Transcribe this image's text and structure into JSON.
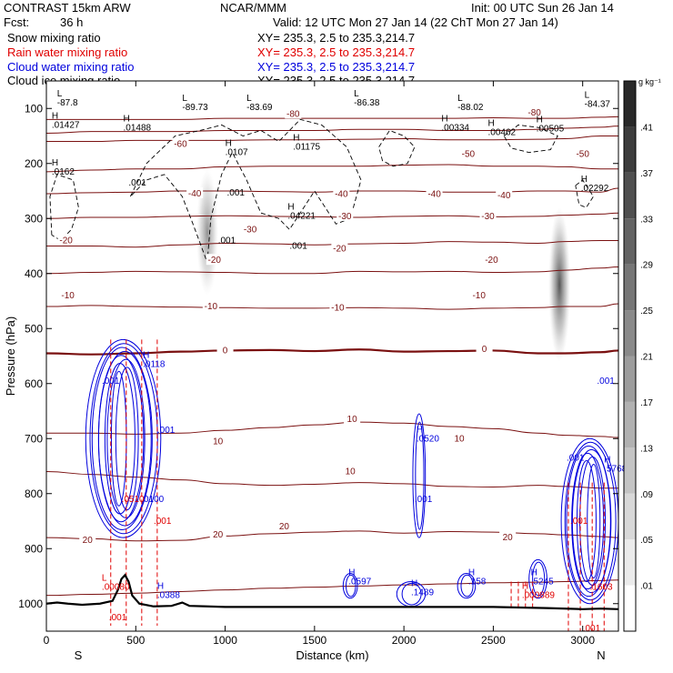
{
  "header": {
    "model": "CONTRAST 15km ARW",
    "center": "NCAR/MMM",
    "init": "Init: 00 UTC Sun 26 Jan 14",
    "fcst_label": "Fcst:",
    "fcst_value": "36 h",
    "valid": "Valid: 12 UTC Mon 27 Jan 14 (22 ChT Mon 27 Jan 14)"
  },
  "fields": [
    {
      "name": "Snow mixing ratio",
      "xy": "XY= 235.3,   2.5 to 235.3,214.7",
      "color": "#000000"
    },
    {
      "name": "Rain water mixing ratio",
      "xy": "XY= 235.3,   2.5 to 235.3,214.7",
      "color": "#e00000"
    },
    {
      "name": "Cloud water mixing ratio",
      "xy": "XY= 235.3,   2.5 to 235.3,214.7",
      "color": "#0000dd"
    },
    {
      "name": "Cloud ice mixing ratio",
      "xy": "XY= 235.3,   2.5 to 235.3,214.7",
      "color": "#000000"
    }
  ],
  "colors": {
    "temperature": "#7a1010",
    "rain": "#e00000",
    "cloud_water": "#0000dd",
    "snow": "#000000",
    "terrain": "#000000"
  },
  "chart_data": {
    "type": "cross-section",
    "xlabel": "Distance (km)",
    "ylabel": "Pressure (hPa)",
    "xlim": [
      0,
      3200
    ],
    "ylim": [
      1050,
      50
    ],
    "x_ticks": [
      0,
      500,
      1000,
      1500,
      2000,
      2500,
      3000
    ],
    "y_ticks": [
      100,
      200,
      300,
      400,
      500,
      600,
      700,
      800,
      900,
      1000
    ],
    "end_labels": {
      "left": "S",
      "right": "N"
    },
    "colorbar": {
      "unit": "g kg⁻¹",
      "ticks": [
        ".01",
        ".05",
        ".09",
        ".13",
        ".17",
        ".21",
        ".25",
        ".29",
        ".33",
        ".37",
        ".41"
      ]
    },
    "isotherms": [
      {
        "level": 20,
        "p": [
          985,
          983,
          981,
          978,
          975,
          972,
          970,
          968,
          966,
          964,
          962,
          961,
          960,
          958,
          957
        ]
      },
      {
        "level": 20,
        "p": [
          880,
          882,
          886,
          885,
          877,
          873,
          870,
          868,
          872,
          869,
          870,
          873,
          875,
          878,
          880
        ]
      },
      {
        "level": 10,
        "p": [
          760,
          765,
          770,
          775,
          782,
          785,
          783,
          780,
          782,
          787,
          788,
          785,
          787,
          790,
          790
        ]
      },
      {
        "level": 10,
        "p": [
          690,
          690,
          692,
          690,
          685,
          680,
          675,
          670,
          672,
          678,
          682,
          690,
          694,
          696,
          698
        ]
      },
      {
        "level": 0,
        "p": [
          545,
          547,
          545,
          542,
          540,
          539,
          541,
          538,
          542,
          541,
          540,
          545,
          545,
          543,
          540
        ]
      },
      {
        "level": -10,
        "p": [
          460,
          458,
          460,
          461,
          462,
          463,
          463,
          462,
          463,
          465,
          463,
          462,
          460,
          460,
          455
        ]
      },
      {
        "level": -10,
        "p": [
          400,
          398,
          396,
          397,
          398,
          400,
          400,
          396,
          397,
          396,
          398,
          397,
          394,
          390,
          388
        ]
      },
      {
        "level": -20,
        "p": [
          350,
          350,
          352,
          348,
          345,
          346,
          348,
          346,
          345,
          342,
          343,
          345,
          342,
          340,
          340
        ]
      },
      {
        "level": -30,
        "p": [
          300,
          298,
          298,
          296,
          295,
          296,
          297,
          298,
          296,
          295,
          297,
          296,
          294,
          292,
          290
        ]
      },
      {
        "level": -40,
        "p": [
          255,
          253,
          252,
          250,
          250,
          251,
          252,
          250,
          250,
          252,
          252,
          250,
          250,
          252,
          245
        ]
      },
      {
        "level": -50,
        "p": [
          215,
          212,
          210,
          210,
          206,
          205,
          205,
          205,
          203,
          202,
          205,
          205,
          206,
          210,
          210
        ]
      },
      {
        "level": -60,
        "p": [
          160,
          160,
          158,
          158,
          158,
          157,
          157,
          156,
          155,
          157,
          157,
          156,
          155,
          150,
          150
        ]
      },
      {
        "level": -70,
        "p": [
          145,
          142,
          142,
          142,
          140,
          140,
          140,
          138,
          138,
          140,
          140,
          138,
          136,
          134,
          132
        ]
      },
      {
        "level": -80,
        "p": [
          120,
          120,
          120,
          120,
          118,
          118,
          118,
          118,
          118,
          118,
          117,
          118,
          118,
          116,
          115
        ]
      }
    ],
    "isotherm_x": [
      0,
      250,
      500,
      750,
      1000,
      1250,
      1500,
      1750,
      2000,
      2250,
      2500,
      2750,
      2900,
      3100,
      3200
    ],
    "isotherm_labels": [
      {
        "text": "20",
        "x": 230,
        "p": 885
      },
      {
        "text": "20",
        "x": 960,
        "p": 875
      },
      {
        "text": "20",
        "x": 1330,
        "p": 860
      },
      {
        "text": "20",
        "x": 2580,
        "p": 880
      },
      {
        "text": "10",
        "x": 960,
        "p": 705
      },
      {
        "text": "10",
        "x": 1700,
        "p": 760
      },
      {
        "text": "10",
        "x": 1710,
        "p": 665
      },
      {
        "text": "10",
        "x": 2310,
        "p": 700
      },
      {
        "text": "0",
        "x": 1000,
        "p": 540
      },
      {
        "text": "0",
        "x": 2450,
        "p": 538
      },
      {
        "text": "-10",
        "x": 120,
        "p": 440
      },
      {
        "text": "-10",
        "x": 920,
        "p": 460
      },
      {
        "text": "-10",
        "x": 1630,
        "p": 462
      },
      {
        "text": "-10",
        "x": 2420,
        "p": 440
      },
      {
        "text": "-20",
        "x": 110,
        "p": 340
      },
      {
        "text": "-20",
        "x": 940,
        "p": 376
      },
      {
        "text": "-20",
        "x": 1640,
        "p": 355
      },
      {
        "text": "-20",
        "x": 2490,
        "p": 376
      },
      {
        "text": "-30",
        "x": 1140,
        "p": 320
      },
      {
        "text": "-30",
        "x": 1670,
        "p": 296
      },
      {
        "text": "-30",
        "x": 2470,
        "p": 296
      },
      {
        "text": "-40",
        "x": 830,
        "p": 255
      },
      {
        "text": "-40",
        "x": 1650,
        "p": 256
      },
      {
        "text": "-40",
        "x": 2170,
        "p": 256
      },
      {
        "text": "-40",
        "x": 2560,
        "p": 258
      },
      {
        "text": "-50",
        "x": 2360,
        "p": 183
      },
      {
        "text": "-50",
        "x": 3000,
        "p": 183
      },
      {
        "text": "-60",
        "x": 750,
        "p": 165
      },
      {
        "text": "-80",
        "x": 1380,
        "p": 110
      },
      {
        "text": "-80",
        "x": 2730,
        "p": 108
      }
    ],
    "maxmin_labels": [
      {
        "mark": "L",
        "value": "-87.8",
        "x": 60,
        "p": 95
      },
      {
        "mark": "L",
        "value": "-89.73",
        "x": 760,
        "p": 103
      },
      {
        "mark": "L",
        "value": "-83.69",
        "x": 1120,
        "p": 103
      },
      {
        "mark": "L",
        "value": "-86.38",
        "x": 1720,
        "p": 95
      },
      {
        "mark": "L",
        "value": "-88.02",
        "x": 2300,
        "p": 103
      },
      {
        "mark": "L",
        "value": "-84.37",
        "x": 3010,
        "p": 97
      },
      {
        "mark": "H",
        "value": ".01427",
        "x": 30,
        "p": 135
      },
      {
        "mark": "H",
        "value": ".01488",
        "x": 430,
        "p": 140
      },
      {
        "mark": "H",
        "value": ".0107",
        "x": 1000,
        "p": 185
      },
      {
        "mark": "H",
        "value": ".01175",
        "x": 1380,
        "p": 175
      },
      {
        "mark": "H",
        "value": ".00334",
        "x": 2210,
        "p": 140
      },
      {
        "mark": "H",
        "value": ".00462",
        "x": 2470,
        "p": 148
      },
      {
        "mark": "H",
        "value": ".00505",
        "x": 2740,
        "p": 142
      },
      {
        "mark": "H",
        "value": ".0162",
        "x": 30,
        "p": 220
      },
      {
        "mark": "H",
        "value": ".02292",
        "x": 2990,
        "p": 250
      },
      {
        "mark": "",
        "value": ".001",
        "x": 460,
        "p": 240
      },
      {
        "mark": "",
        "value": ".001",
        "x": 1010,
        "p": 258
      },
      {
        "mark": "H",
        "value": ".04221",
        "x": 1350,
        "p": 300
      },
      {
        "mark": "",
        "value": ".001",
        "x": 960,
        "p": 345
      },
      {
        "mark": "",
        "value": ".001",
        "x": 1360,
        "p": 355
      }
    ],
    "cloud_water_labels": [
      {
        "mark": "H",
        "value": ".0118",
        "x": 540,
        "p": 570
      },
      {
        "mark": "",
        "value": ".001",
        "x": 310,
        "p": 600
      },
      {
        "mark": "",
        "value": ".001",
        "x": 620,
        "p": 690
      },
      {
        "mark": "",
        "value": ".0100",
        "x": 530,
        "p": 815
      },
      {
        "mark": "H",
        "value": ".0520",
        "x": 2070,
        "p": 705
      },
      {
        "mark": "",
        "value": ".001",
        "x": 2060,
        "p": 815
      },
      {
        "mark": "",
        "value": ".001",
        "x": 3080,
        "p": 600
      },
      {
        "mark": "",
        "value": ".001",
        "x": 2910,
        "p": 740
      },
      {
        "mark": "H",
        "value": ".5768",
        "x": 3120,
        "p": 760
      },
      {
        "mark": "H",
        "value": ".0597",
        "x": 1690,
        "p": 965
      },
      {
        "mark": "H",
        "value": ".1489",
        "x": 2040,
        "p": 985
      },
      {
        "mark": "H",
        "value": ".158",
        "x": 2360,
        "p": 965
      },
      {
        "mark": "H",
        "value": ".5245",
        "x": 2710,
        "p": 965
      },
      {
        "mark": "H",
        "value": ".0388",
        "x": 620,
        "p": 990
      }
    ],
    "rain_labels": [
      {
        "mark": "",
        "value": ".0510",
        "x": 420,
        "p": 815
      },
      {
        "mark": "",
        "value": ".001",
        "x": 600,
        "p": 855
      },
      {
        "mark": "L",
        "value": ".00080",
        "x": 310,
        "p": 975
      },
      {
        "mark": "",
        "value": ".001",
        "x": 350,
        "p": 1030
      },
      {
        "mark": "H",
        "value": ".000889",
        "x": 2660,
        "p": 990
      },
      {
        "mark": "",
        "value": ".001",
        "x": 2930,
        "p": 855
      },
      {
        "mark": "",
        "value": ".1603",
        "x": 3040,
        "p": 975
      },
      {
        "mark": "",
        "value": ".001",
        "x": 3000,
        "p": 1050
      }
    ],
    "terrain": {
      "x": [
        0,
        60,
        120,
        200,
        300,
        370,
        400,
        420,
        440,
        460,
        480,
        520,
        600,
        700,
        760,
        800,
        900,
        1000,
        1500,
        2000,
        2500,
        2800,
        3000,
        3100,
        3200
      ],
      "p": [
        1000,
        998,
        1000,
        1002,
        1000,
        995,
        975,
        955,
        948,
        960,
        985,
        1000,
        1005,
        1004,
        998,
        1004,
        1005,
        1006,
        1006,
        1006,
        1006,
        1008,
        1010,
        1009,
        1010
      ]
    },
    "snow_plumes": [
      {
        "x": 900,
        "p_top": 210,
        "p_bottom": 440,
        "peak": 0.35
      },
      {
        "x": 2870,
        "p_top": 280,
        "p_bottom": 560,
        "peak": 0.55
      }
    ]
  }
}
